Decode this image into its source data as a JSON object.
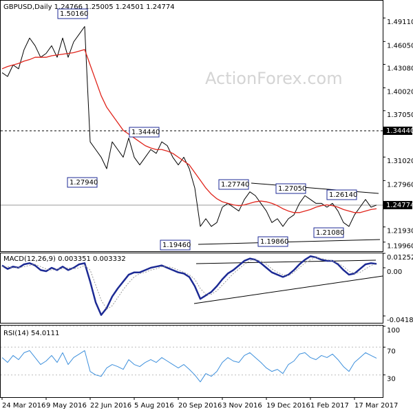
{
  "chart_data": [
    {
      "type": "line",
      "title": "GBPUSD,Daily 1.24766 1.25005 1.24501 1.24774",
      "watermark": "ActionForex.com",
      "series": [
        {
          "color": "#000000",
          "width": 1,
          "values": [
            1.42,
            1.415,
            1.43,
            1.425,
            1.45,
            1.465,
            1.455,
            1.44,
            1.445,
            1.455,
            1.44,
            1.465,
            1.44,
            1.46,
            1.47,
            1.48,
            1.33,
            1.32,
            1.31,
            1.295,
            1.33,
            1.32,
            1.31,
            1.335,
            1.31,
            1.3,
            1.31,
            1.32,
            1.315,
            1.33,
            1.325,
            1.31,
            1.3,
            1.31,
            1.295,
            1.27,
            1.22,
            1.23,
            1.22,
            1.225,
            1.245,
            1.25,
            1.245,
            1.24,
            1.255,
            1.265,
            1.26,
            1.25,
            1.24,
            1.225,
            1.23,
            1.22,
            1.23,
            1.235,
            1.25,
            1.26,
            1.255,
            1.25,
            1.25,
            1.245,
            1.25,
            1.24,
            1.225,
            1.22,
            1.235,
            1.245,
            1.255,
            1.245,
            1.24774
          ]
        },
        {
          "color": "#e0241b",
          "width": 1.3,
          "values": [
            1.425,
            1.428,
            1.43,
            1.432,
            1.435,
            1.437,
            1.44,
            1.44,
            1.44,
            1.442,
            1.443,
            1.444,
            1.445,
            1.446,
            1.448,
            1.45,
            1.43,
            1.41,
            1.39,
            1.375,
            1.365,
            1.355,
            1.345,
            1.34,
            1.335,
            1.33,
            1.325,
            1.322,
            1.32,
            1.32,
            1.318,
            1.315,
            1.31,
            1.305,
            1.3,
            1.29,
            1.28,
            1.27,
            1.262,
            1.256,
            1.252,
            1.25,
            1.248,
            1.247,
            1.248,
            1.25,
            1.252,
            1.253,
            1.252,
            1.25,
            1.247,
            1.243,
            1.24,
            1.238,
            1.238,
            1.24,
            1.242,
            1.245,
            1.247,
            1.248,
            1.247,
            1.245,
            1.242,
            1.24,
            1.238,
            1.238,
            1.24,
            1.242,
            1.243
          ]
        }
      ],
      "ylim": [
        1.1877,
        1.5118
      ],
      "yticks": [
        {
          "value": 1.4911,
          "label": "1.49110"
        },
        {
          "value": 1.4605,
          "label": "1.46050"
        },
        {
          "value": 1.4308,
          "label": "1.43080"
        },
        {
          "value": 1.4002,
          "label": "1.40020"
        },
        {
          "value": 1.3705,
          "label": "1.37050"
        },
        {
          "value": 1.3102,
          "label": "1.31020"
        },
        {
          "value": 1.2796,
          "label": "1.27960"
        },
        {
          "value": 1.2193,
          "label": "1.21930"
        },
        {
          "value": 1.1996,
          "label": "1.19960"
        }
      ],
      "grid": false,
      "annotations": [
        {
          "value": 1.5016,
          "label": "1.50160"
        },
        {
          "value": 1.3444,
          "label": "1.34440"
        },
        {
          "value": 1.2794,
          "label": "1.27940"
        },
        {
          "value": 1.2774,
          "label": "1.27740"
        },
        {
          "value": 1.2705,
          "label": "1.27050"
        },
        {
          "value": 1.2614,
          "label": "1.26140"
        },
        {
          "value": 1.1946,
          "label": "1.19460"
        },
        {
          "value": 1.1986,
          "label": "1.19860"
        },
        {
          "value": 1.2108,
          "label": "1.21080"
        }
      ],
      "price_markers": [
        {
          "value": 1.3444,
          "label": "1.34440",
          "style": "dashed"
        },
        {
          "value": 1.24774,
          "label": "1.24774",
          "style": "solid"
        }
      ]
    },
    {
      "type": "line",
      "title": "MACD(12,26,9) 0.003351 0.003332",
      "series": [
        {
          "color": "#1c2a94",
          "width": 2.5,
          "style": "solid",
          "values": [
            0.002,
            -0.001,
            0.001,
            0.0,
            0.003,
            0.004,
            0.002,
            -0.002,
            -0.003,
            0.0,
            -0.002,
            0.001,
            -0.002,
            0.0,
            0.003,
            0.004,
            -0.012,
            -0.03,
            -0.041,
            -0.035,
            -0.025,
            -0.018,
            -0.012,
            -0.006,
            -0.004,
            -0.004,
            -0.002,
            0.0,
            0.001,
            0.002,
            0.0,
            -0.002,
            -0.004,
            -0.005,
            -0.008,
            -0.016,
            -0.027,
            -0.024,
            -0.021,
            -0.016,
            -0.01,
            -0.005,
            -0.002,
            0.002,
            0.006,
            0.008,
            0.007,
            0.004,
            0.0,
            -0.004,
            -0.006,
            -0.008,
            -0.006,
            -0.002,
            0.003,
            0.007,
            0.01,
            0.009,
            0.007,
            0.006,
            0.006,
            0.003,
            -0.002,
            -0.006,
            -0.005,
            -0.001,
            0.003,
            0.004,
            0.003351
          ]
        },
        {
          "color": "#9a9a9a",
          "width": 1,
          "style": "dotted",
          "values": [
            0.001,
            0.001,
            0.0,
            0.0,
            0.001,
            0.002,
            0.003,
            0.001,
            -0.001,
            -0.002,
            -0.001,
            -0.001,
            0.0,
            -0.001,
            0.0,
            0.002,
            -0.002,
            -0.015,
            -0.028,
            -0.036,
            -0.033,
            -0.026,
            -0.019,
            -0.013,
            -0.008,
            -0.005,
            -0.004,
            -0.002,
            -0.001,
            0.001,
            0.001,
            0.0,
            -0.002,
            -0.004,
            -0.006,
            -0.01,
            -0.018,
            -0.023,
            -0.023,
            -0.02,
            -0.015,
            -0.01,
            -0.005,
            -0.001,
            0.003,
            0.006,
            0.007,
            0.006,
            0.003,
            -0.001,
            -0.004,
            -0.006,
            -0.007,
            -0.004,
            0.0,
            0.004,
            0.007,
            0.009,
            0.008,
            0.007,
            0.006,
            0.004,
            0.001,
            -0.003,
            -0.005,
            -0.004,
            -0.001,
            0.002,
            0.003332
          ]
        }
      ],
      "ylim": [
        -0.0484,
        0.01255
      ],
      "yticks": [
        0.012522,
        {
          "value": 0,
          "label": "0.00"
        },
        -0.041823
      ],
      "grid": false
    },
    {
      "type": "line",
      "title": "RSI(14) 54.0111",
      "categories": [
        "24 Mar 2016",
        null,
        null,
        null,
        null,
        null,
        null,
        null,
        "9 May 2016",
        null,
        null,
        null,
        null,
        null,
        null,
        null,
        "22 Jun 2016",
        null,
        null,
        null,
        null,
        null,
        null,
        null,
        "5 Aug 2016",
        null,
        null,
        null,
        null,
        null,
        null,
        null,
        "20 Sep 2016",
        null,
        null,
        null,
        null,
        null,
        null,
        null,
        "3 Nov 2016",
        null,
        null,
        null,
        null,
        null,
        null,
        null,
        "19 Dec 2016",
        null,
        null,
        null,
        null,
        null,
        null,
        null,
        "1 Feb 2017",
        null,
        null,
        null,
        null,
        null,
        null,
        null,
        "17 Mar 2017",
        null,
        null,
        null,
        null
      ],
      "series": [
        {
          "color": "#3c8fdc",
          "width": 1,
          "style": "solid",
          "values": [
            55,
            48,
            58,
            52,
            62,
            65,
            55,
            45,
            50,
            58,
            48,
            62,
            45,
            55,
            60,
            65,
            35,
            30,
            28,
            40,
            45,
            42,
            38,
            52,
            45,
            42,
            48,
            52,
            48,
            55,
            50,
            45,
            40,
            45,
            38,
            30,
            20,
            32,
            28,
            35,
            48,
            55,
            50,
            48,
            58,
            62,
            55,
            48,
            40,
            35,
            38,
            32,
            45,
            50,
            60,
            62,
            55,
            52,
            58,
            55,
            60,
            52,
            42,
            35,
            48,
            55,
            62,
            58,
            54.0111
          ]
        }
      ],
      "ylim": [
        -2,
        101
      ],
      "yticks": [
        100,
        70,
        30
      ],
      "grid": true
    }
  ]
}
